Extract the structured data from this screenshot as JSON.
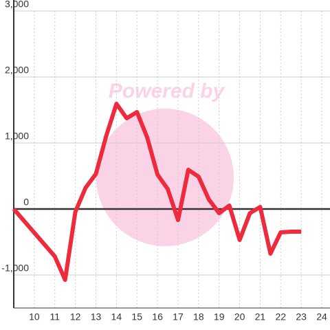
{
  "chart_data": {
    "type": "line",
    "watermark": "Powered by",
    "x": [
      9,
      11,
      11.5,
      12,
      12.5,
      13,
      13.5,
      14,
      14.5,
      15,
      15.5,
      16,
      16.5,
      17,
      17.5,
      18,
      18.5,
      19,
      19.5,
      20,
      20.5,
      21,
      21.5,
      22,
      22.5,
      23
    ],
    "series": [
      {
        "color": "#ee2a3d",
        "values": [
          0,
          -719,
          -1073,
          -42,
          323,
          531,
          1104,
          1594,
          1375,
          1469,
          1083,
          521,
          302,
          -167,
          594,
          490,
          146,
          -63,
          52,
          -469,
          -63,
          31,
          -677,
          -354,
          -344,
          -344
        ]
      }
    ],
    "xlim": [
      9,
      24.4
    ],
    "xticks": [
      10,
      11,
      12,
      13,
      14,
      15,
      16,
      17,
      18,
      19,
      20,
      21,
      22,
      23,
      24
    ],
    "ylim": [
      -1500,
      3000
    ],
    "yticks": [
      {
        "value": -1000,
        "label": "-1,000"
      },
      0,
      {
        "value": 1000,
        "label": "1,000"
      },
      {
        "value": 2000,
        "label": "2,000"
      },
      {
        "value": 3000,
        "label": "3,000"
      }
    ],
    "grid": true
  }
}
